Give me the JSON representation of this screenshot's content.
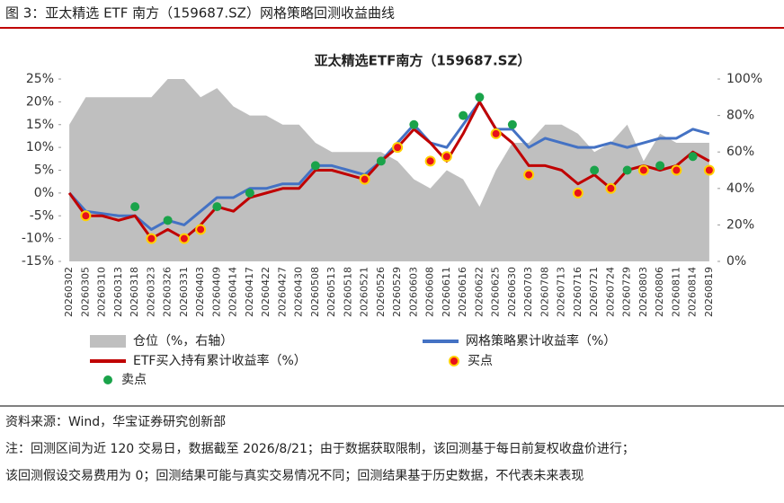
{
  "header": {
    "title": "图 3：亚太精选 ETF 南方（159687.SZ）网格策略回测收益曲线"
  },
  "chart_data": {
    "type": "combo",
    "title": "亚太精选ETF南方（159687.SZ）",
    "categories": [
      "20260302",
      "20260305",
      "20260310",
      "20260313",
      "20260318",
      "20260323",
      "20260326",
      "20260331",
      "20260403",
      "20260409",
      "20260414",
      "20260417",
      "20260422",
      "20260427",
      "20260430",
      "20260508",
      "20260513",
      "20260518",
      "20260521",
      "20260526",
      "20260529",
      "20260603",
      "20260608",
      "20260611",
      "20260616",
      "20260622",
      "20260625",
      "20260630",
      "20260703",
      "20260708",
      "20260713",
      "20260716",
      "20260721",
      "20260724",
      "20260729",
      "20260803",
      "20260806",
      "20260811",
      "20260814",
      "20260819"
    ],
    "series": [
      {
        "name": "仓位（%，右轴）",
        "kind": "area",
        "axis": "y2",
        "color": "#bfbfbf",
        "values": [
          75,
          90,
          90,
          90,
          90,
          90,
          100,
          100,
          90,
          95,
          85,
          80,
          80,
          75,
          75,
          65,
          60,
          60,
          60,
          60,
          55,
          45,
          40,
          50,
          45,
          30,
          50,
          65,
          65,
          75,
          75,
          70,
          60,
          65,
          75,
          55,
          70,
          65,
          65,
          65
        ]
      },
      {
        "name": "网格策略累计收益率（%）",
        "kind": "line",
        "color": "#4472c4",
        "values": [
          0,
          -4,
          -4.5,
          -5,
          -5,
          -8,
          -6,
          -7,
          -4,
          -1,
          -1,
          1,
          1,
          2,
          2,
          6,
          6,
          5,
          4,
          7,
          11,
          15,
          11,
          10,
          15,
          20,
          14,
          14,
          10,
          12,
          11,
          10,
          10,
          11,
          10,
          11,
          12,
          12,
          14,
          13
        ]
      },
      {
        "name": "ETF买入持有累计收益率（%）",
        "kind": "line",
        "color": "#c00000",
        "values": [
          0,
          -5,
          -5,
          -6,
          -5,
          -10,
          -8,
          -10,
          -7,
          -3,
          -4,
          -1,
          0,
          1,
          1,
          5,
          5,
          4,
          3,
          7,
          10,
          14,
          11,
          7,
          13,
          20,
          14,
          11,
          6,
          6,
          5,
          2,
          4,
          1,
          5,
          6,
          5,
          6,
          9,
          7
        ]
      },
      {
        "name": "买点",
        "kind": "dot",
        "color": "#e8101a",
        "values": [
          null,
          -5,
          null,
          null,
          null,
          -10,
          null,
          -10,
          -8,
          null,
          null,
          null,
          null,
          null,
          null,
          null,
          null,
          null,
          3,
          null,
          10,
          null,
          7,
          8,
          null,
          null,
          13,
          null,
          4,
          null,
          null,
          0,
          null,
          1,
          null,
          5,
          null,
          5,
          null,
          5
        ]
      },
      {
        "name": "卖点",
        "kind": "dot",
        "color": "#1aa34a",
        "values": [
          null,
          null,
          null,
          null,
          -3,
          null,
          -6,
          null,
          null,
          -3,
          null,
          0,
          null,
          null,
          null,
          6,
          null,
          null,
          null,
          7,
          null,
          15,
          null,
          null,
          17,
          21,
          null,
          15,
          null,
          null,
          null,
          null,
          5,
          null,
          5,
          null,
          6,
          null,
          8,
          null
        ]
      }
    ],
    "ylim": [
      -15,
      25
    ],
    "yticks": [
      {
        "value": -15,
        "label": "-15%"
      },
      {
        "value": -10,
        "label": "-10%"
      },
      {
        "value": -5,
        "label": "-5%"
      },
      {
        "value": 0,
        "label": "0%"
      },
      {
        "value": 5,
        "label": "5%"
      },
      {
        "value": 10,
        "label": "10%"
      },
      {
        "value": 15,
        "label": "15%"
      },
      {
        "value": 20,
        "label": "20%"
      },
      {
        "value": 25,
        "label": "25%"
      }
    ],
    "y2lim": [
      0,
      100
    ],
    "y2ticks": [
      {
        "value": 0,
        "label": "0%"
      },
      {
        "value": 20,
        "label": "20%"
      },
      {
        "value": 40,
        "label": "40%"
      },
      {
        "value": 60,
        "label": "60%"
      },
      {
        "value": 80,
        "label": "80%"
      },
      {
        "value": 100,
        "label": "100%"
      }
    ]
  },
  "source": "资料来源：Wind，华宝证券研究创新部",
  "notes": [
    "注：回测区间为近 120 交易日，数据截至 2026/8/21；由于数据获取限制，该回测基于每日前复权收盘价进行；",
    "该回测假设交易费用为 0；回测结果可能与真实交易情况不同；回测结果基于历史数据，不代表未来表现"
  ]
}
